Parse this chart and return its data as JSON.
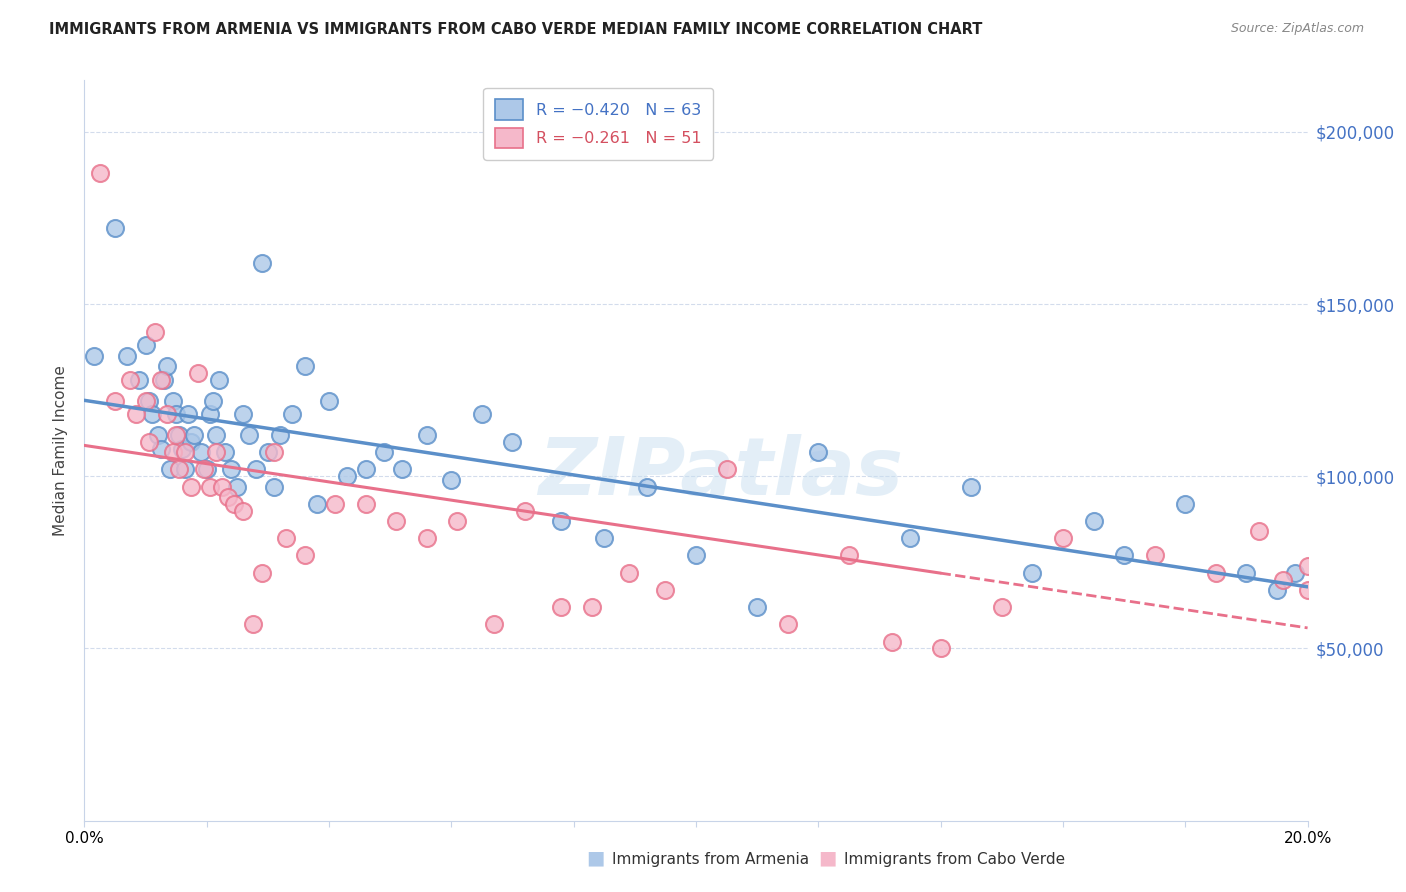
{
  "title": "IMMIGRANTS FROM ARMENIA VS IMMIGRANTS FROM CABO VERDE MEDIAN FAMILY INCOME CORRELATION CHART",
  "source": "Source: ZipAtlas.com",
  "ylabel": "Median Family Income",
  "legend_line1": "R = -0.420   N = 63",
  "legend_line2": "R = -0.261   N = 51",
  "legend_label1": "Immigrants from Armenia",
  "legend_label2": "Immigrants from Cabo Verde",
  "color_armenia": "#adc8e8",
  "color_cabo_verde": "#f5b8ca",
  "color_line_armenia": "#5b8fc9",
  "color_line_cabo_verde": "#e8708a",
  "ytick_labels": [
    "$50,000",
    "$100,000",
    "$150,000",
    "$200,000"
  ],
  "ytick_values": [
    50000,
    100000,
    150000,
    200000
  ],
  "armenia_x": [
    0.15,
    0.5,
    0.7,
    0.9,
    1.0,
    1.05,
    1.1,
    1.2,
    1.25,
    1.3,
    1.35,
    1.4,
    1.45,
    1.5,
    1.55,
    1.6,
    1.65,
    1.7,
    1.75,
    1.8,
    1.9,
    2.0,
    2.05,
    2.1,
    2.15,
    2.2,
    2.3,
    2.4,
    2.5,
    2.6,
    2.7,
    2.8,
    2.9,
    3.0,
    3.1,
    3.2,
    3.4,
    3.6,
    3.8,
    4.0,
    4.3,
    4.6,
    4.9,
    5.2,
    5.6,
    6.0,
    6.5,
    7.0,
    7.8,
    8.5,
    9.2,
    10.0,
    11.0,
    12.0,
    13.5,
    14.5,
    15.5,
    16.5,
    17.0,
    18.0,
    19.0,
    19.5,
    19.8
  ],
  "armenia_y": [
    135000,
    172000,
    135000,
    128000,
    138000,
    122000,
    118000,
    112000,
    108000,
    128000,
    132000,
    102000,
    122000,
    118000,
    112000,
    108000,
    102000,
    118000,
    110000,
    112000,
    107000,
    102000,
    118000,
    122000,
    112000,
    128000,
    107000,
    102000,
    97000,
    118000,
    112000,
    102000,
    162000,
    107000,
    97000,
    112000,
    118000,
    132000,
    92000,
    122000,
    100000,
    102000,
    107000,
    102000,
    112000,
    99000,
    118000,
    110000,
    87000,
    82000,
    97000,
    77000,
    62000,
    107000,
    82000,
    97000,
    72000,
    87000,
    77000,
    92000,
    72000,
    67000,
    72000
  ],
  "cabo_verde_x": [
    0.25,
    0.5,
    0.75,
    0.85,
    1.0,
    1.05,
    1.15,
    1.25,
    1.35,
    1.45,
    1.5,
    1.55,
    1.65,
    1.75,
    1.85,
    1.95,
    2.05,
    2.15,
    2.25,
    2.35,
    2.45,
    2.6,
    2.75,
    2.9,
    3.1,
    3.3,
    3.6,
    4.1,
    4.6,
    5.1,
    5.6,
    6.1,
    6.7,
    7.2,
    7.8,
    8.3,
    8.9,
    9.5,
    10.5,
    11.5,
    12.5,
    13.2,
    14.0,
    15.0,
    16.0,
    17.5,
    18.5,
    19.2,
    19.6,
    20.0,
    20.0
  ],
  "cabo_verde_y": [
    188000,
    122000,
    128000,
    118000,
    122000,
    110000,
    142000,
    128000,
    118000,
    107000,
    112000,
    102000,
    107000,
    97000,
    130000,
    102000,
    97000,
    107000,
    97000,
    94000,
    92000,
    90000,
    57000,
    72000,
    107000,
    82000,
    77000,
    92000,
    92000,
    87000,
    82000,
    87000,
    57000,
    90000,
    62000,
    62000,
    72000,
    67000,
    102000,
    57000,
    77000,
    52000,
    50000,
    62000,
    82000,
    77000,
    72000,
    84000,
    70000,
    74000,
    67000
  ],
  "xmin": 0.0,
  "xmax": 20.0,
  "ymin": 0,
  "ymax": 215000,
  "watermark": "ZIPatlas",
  "background_color": "#ffffff",
  "grid_color": "#c8d4e8",
  "title_fontsize": 10.5,
  "axis_label_fontsize": 10,
  "ytick_color": "#4472c4"
}
